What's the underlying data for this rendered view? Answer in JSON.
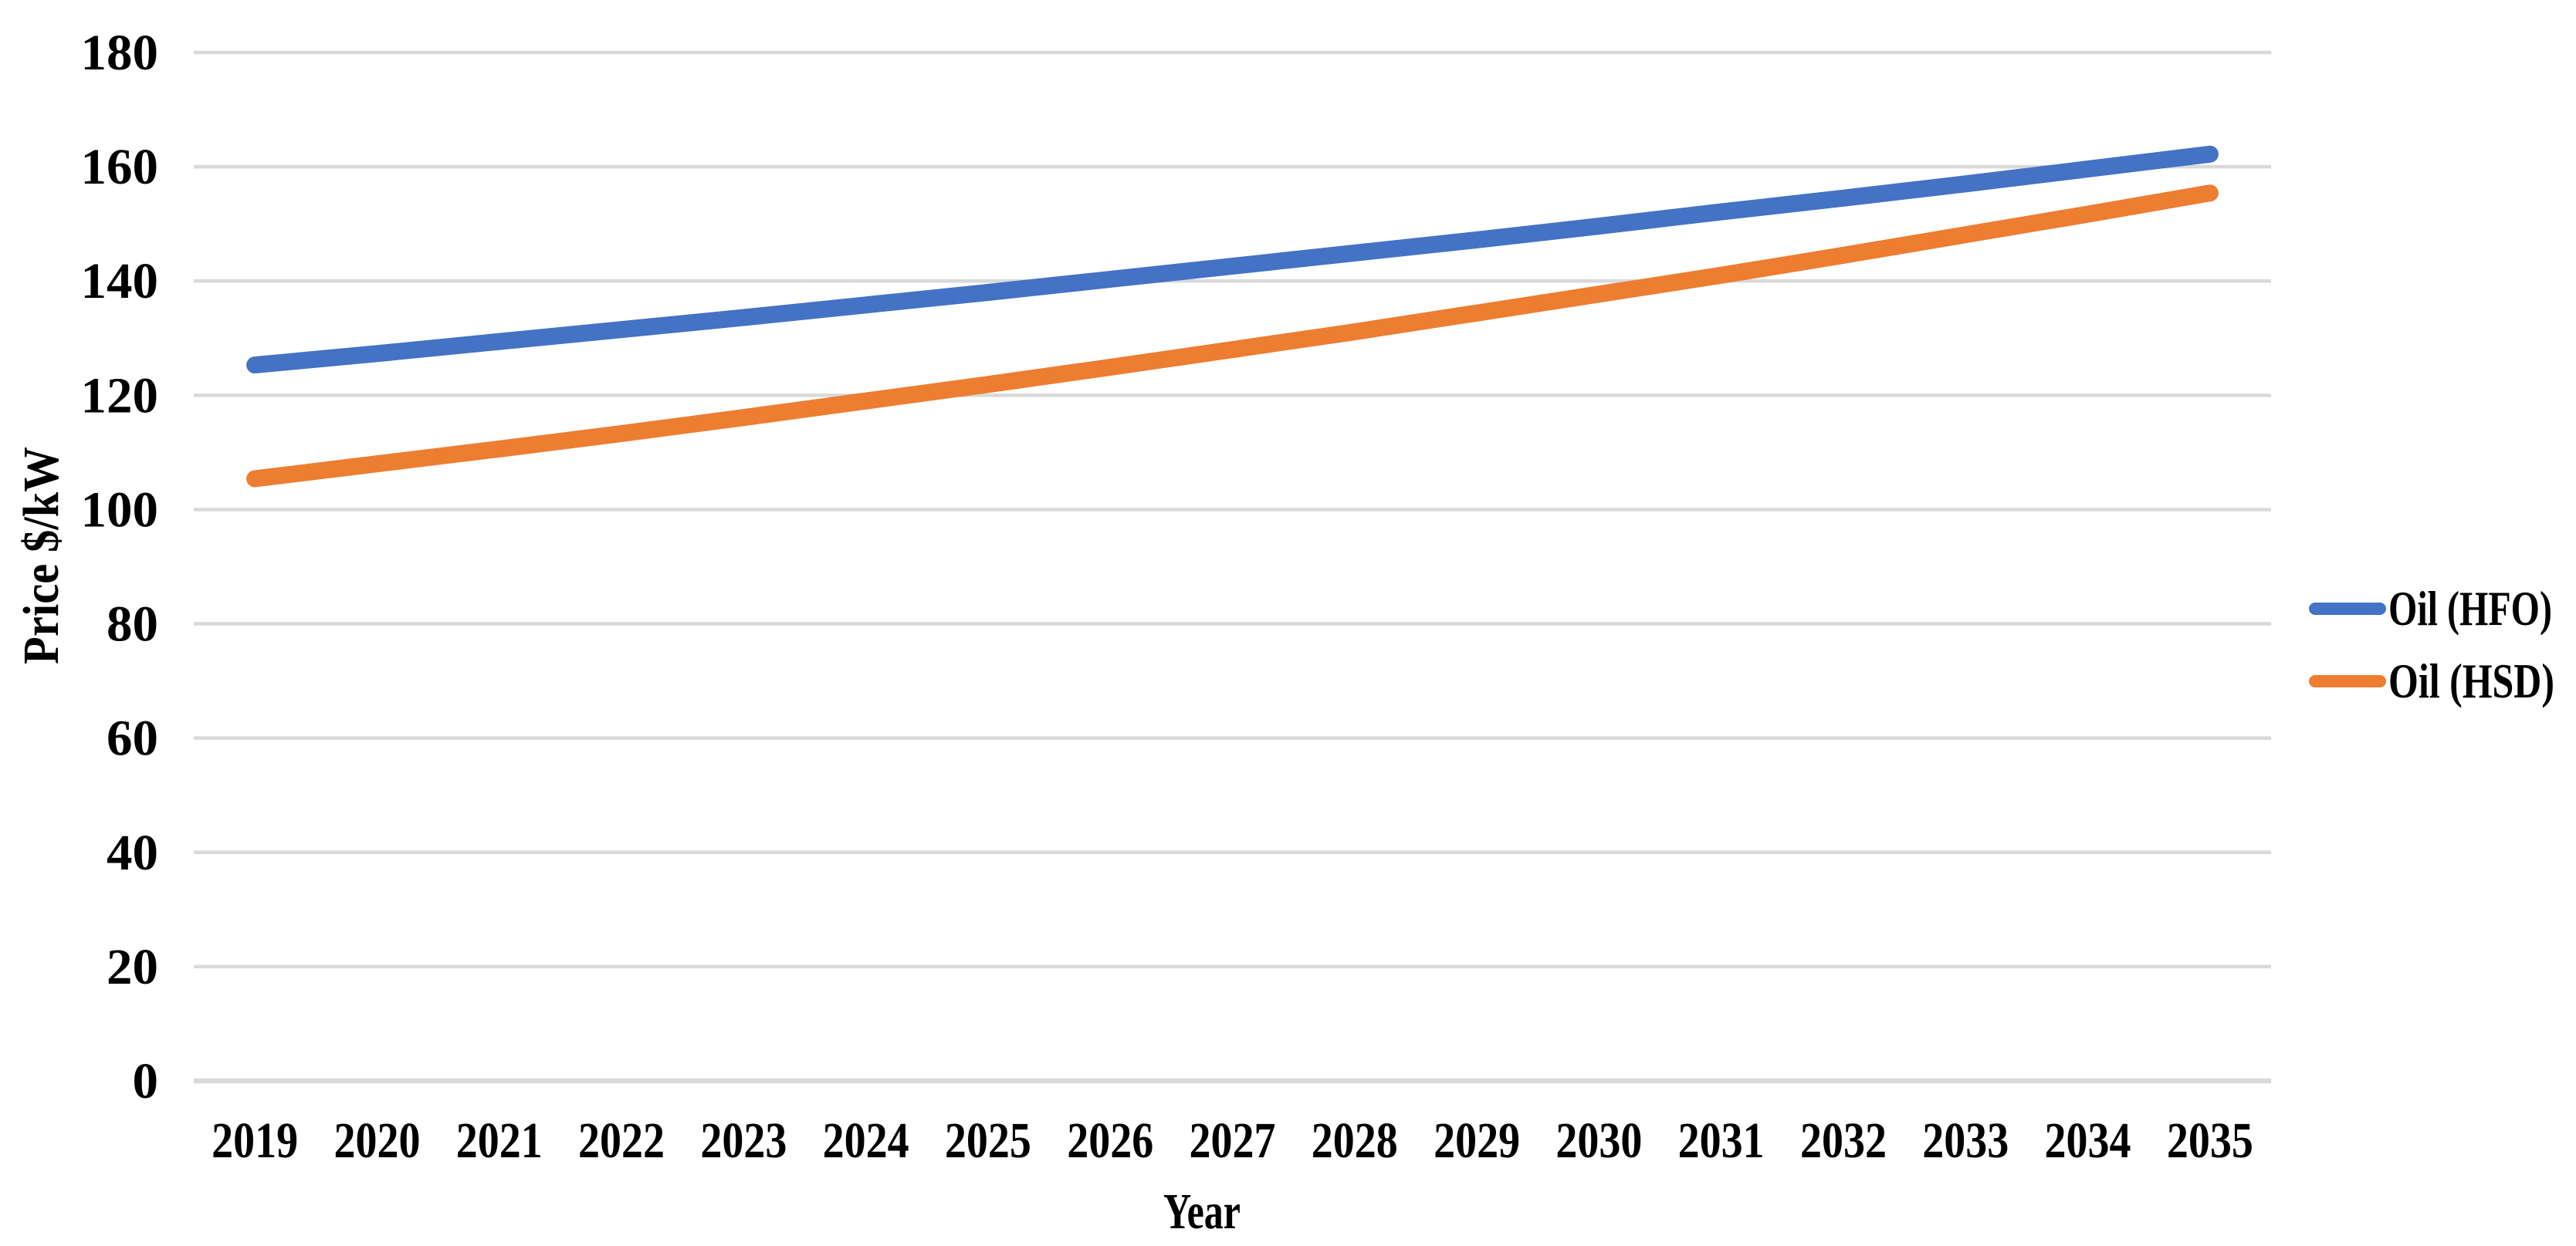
{
  "chart_data": {
    "type": "line",
    "title": "",
    "xlabel": "Year",
    "ylabel": "Price $/kW",
    "categories": [
      "2019",
      "2020",
      "2021",
      "2022",
      "2023",
      "2024",
      "2025",
      "2026",
      "2027",
      "2028",
      "2029",
      "2030",
      "2031",
      "2032",
      "2033",
      "2034",
      "2035"
    ],
    "series": [
      {
        "name": "Oil (HFO)",
        "color": "#4472C4",
        "values": [
          125.3,
          127.3,
          129.4,
          131.5,
          133.6,
          135.8,
          138.0,
          140.3,
          142.6,
          144.9,
          147.2,
          149.6,
          152.1,
          154.5,
          157.0,
          159.6,
          162.2
        ]
      },
      {
        "name": "Oil (HSD)",
        "color": "#ED7D31",
        "values": [
          105.4,
          108.0,
          110.6,
          113.3,
          116.1,
          119.0,
          121.9,
          124.9,
          128.0,
          131.1,
          134.4,
          137.7,
          141.0,
          144.5,
          148.1,
          151.7,
          155.4
        ]
      }
    ],
    "ylim": [
      0,
      180
    ],
    "yticks": [
      0,
      20,
      40,
      60,
      80,
      100,
      120,
      140,
      160,
      180
    ],
    "grid": true,
    "gridline_color": "#D9D9D9",
    "axis_line_color": "#D9D9D9",
    "legend_position": "right"
  }
}
